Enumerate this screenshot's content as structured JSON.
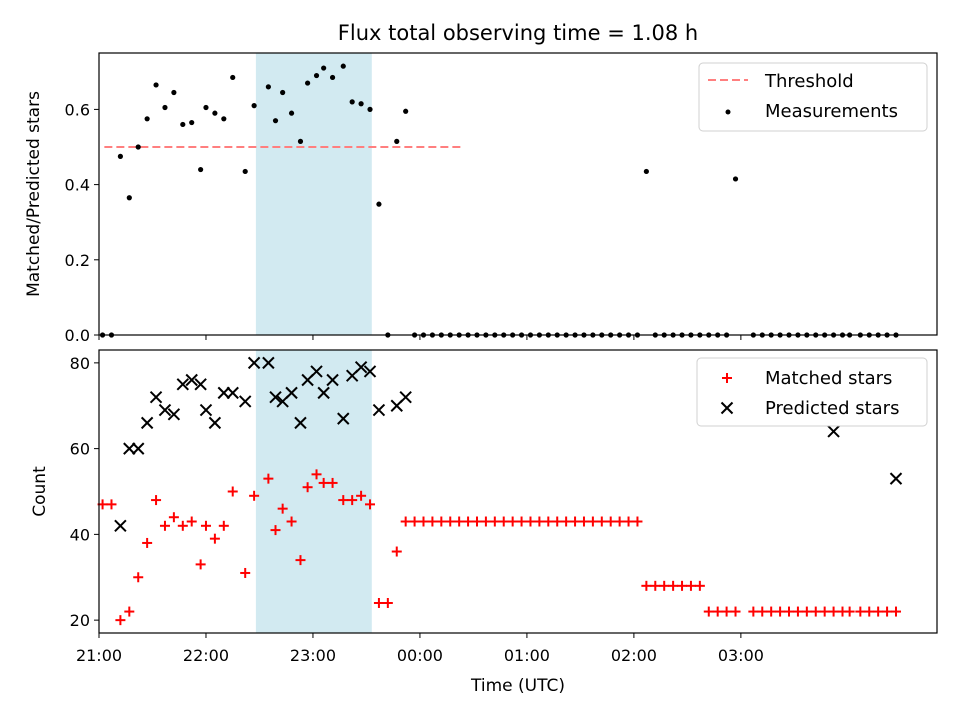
{
  "chart_data": [
    {
      "type": "scatter",
      "title": "Flux total observing time = 1.08 h",
      "xlabel": "",
      "ylabel": "Matched/Predicted stars",
      "ylim": [
        0,
        0.75
      ],
      "yticks": [
        "0.0",
        "0.2",
        "0.4",
        "0.6"
      ],
      "legend_position": "top-right",
      "shaded_interval": [
        "22:28",
        "23:33"
      ],
      "threshold": {
        "name": "Threshold",
        "value": 0.5,
        "x_range": [
          "21:03",
          "24:23"
        ],
        "color": "#ff7f7f",
        "style": "dashed"
      },
      "series": [
        {
          "name": "Measurements",
          "marker": "dot",
          "color": "#000000",
          "x": [
            "21:02",
            "21:07",
            "21:12",
            "21:17",
            "21:22",
            "21:27",
            "21:32",
            "21:37",
            "21:42",
            "21:47",
            "21:52",
            "21:57",
            "22:00",
            "22:05",
            "22:10",
            "22:15",
            "22:22",
            "22:27",
            "22:35",
            "22:39",
            "22:43",
            "22:48",
            "22:53",
            "22:57",
            "23:02",
            "23:06",
            "23:11",
            "23:17",
            "23:22",
            "23:27",
            "23:32",
            "23:37",
            "23:42",
            "23:47",
            "23:52",
            "23:57",
            "24:02",
            "24:07",
            "24:12",
            "24:17",
            "24:22",
            "24:27",
            "24:32",
            "24:37",
            "24:42",
            "24:47",
            "24:52",
            "24:57",
            "25:02",
            "25:07",
            "25:12",
            "25:17",
            "25:22",
            "25:27",
            "25:32",
            "25:37",
            "25:42",
            "25:47",
            "25:52",
            "25:57",
            "26:02",
            "26:07",
            "26:12",
            "26:17",
            "26:22",
            "26:27",
            "26:32",
            "26:37",
            "26:42",
            "26:47",
            "26:52",
            "26:57",
            "27:07",
            "27:12",
            "27:17",
            "27:22",
            "27:27",
            "27:32",
            "27:37",
            "27:42",
            "27:47",
            "27:52",
            "27:57",
            "28:01",
            "28:07",
            "28:12",
            "28:17",
            "28:22",
            "28:27"
          ],
          "y": [
            0,
            0,
            0.475,
            0.365,
            0.5,
            0.575,
            0.665,
            0.605,
            0.645,
            0.56,
            0.565,
            0.44,
            0.605,
            0.59,
            0.575,
            0.685,
            0.435,
            0.61,
            0.66,
            0.57,
            0.645,
            0.59,
            0.515,
            0.67,
            0.69,
            0.71,
            0.685,
            0.715,
            0.62,
            0.615,
            0.6,
            0.348,
            0,
            0.515,
            0.595,
            0,
            0,
            0,
            0,
            0,
            0,
            0,
            0,
            0,
            0,
            0,
            0,
            0,
            0,
            0,
            0,
            0,
            0,
            0,
            0,
            0,
            0,
            0,
            0,
            0,
            0,
            0.435,
            0,
            0,
            0,
            0,
            0,
            0,
            0,
            0,
            0,
            0.415,
            0,
            0,
            0,
            0,
            0,
            0,
            0,
            0,
            0,
            0,
            0,
            0,
            0,
            0,
            0,
            0,
            0
          ]
        }
      ]
    },
    {
      "type": "scatter",
      "title": "",
      "xlabel": "Time (UTC)",
      "ylabel": "Count",
      "ylim": [
        17,
        83
      ],
      "yticks": [
        "20",
        "40",
        "60",
        "80"
      ],
      "xticks": [
        "21:00",
        "22:00",
        "23:00",
        "00:00",
        "01:00",
        "02:00",
        "03:00"
      ],
      "legend_position": "top-right",
      "series": [
        {
          "name": "Matched stars",
          "marker": "plus",
          "color": "#ff0000",
          "x": [
            "21:02",
            "21:07",
            "21:12",
            "21:17",
            "21:22",
            "21:27",
            "21:32",
            "21:37",
            "21:42",
            "21:47",
            "21:52",
            "21:57",
            "22:00",
            "22:05",
            "22:10",
            "22:15",
            "22:22",
            "22:27",
            "22:35",
            "22:39",
            "22:43",
            "22:48",
            "22:53",
            "22:57",
            "23:02",
            "23:06",
            "23:11",
            "23:17",
            "23:22",
            "23:27",
            "23:32",
            "23:37",
            "23:42",
            "23:47",
            "23:52",
            "23:57",
            "24:02",
            "24:07",
            "24:12",
            "24:17",
            "24:22",
            "24:27",
            "24:32",
            "24:37",
            "24:42",
            "24:47",
            "24:52",
            "24:57",
            "25:02",
            "25:07",
            "25:12",
            "25:17",
            "25:22",
            "25:27",
            "25:32",
            "25:37",
            "25:42",
            "25:47",
            "25:52",
            "25:57",
            "26:02",
            "26:07",
            "26:12",
            "26:17",
            "26:22",
            "26:27",
            "26:32",
            "26:37",
            "26:42",
            "26:47",
            "26:52",
            "26:57",
            "27:07",
            "27:12",
            "27:17",
            "27:22",
            "27:27",
            "27:32",
            "27:37",
            "27:42",
            "27:47",
            "27:52",
            "27:57",
            "28:01",
            "28:07",
            "28:12",
            "28:17",
            "28:22",
            "28:27"
          ],
          "y": [
            47,
            47,
            20,
            22,
            30,
            38,
            48,
            42,
            44,
            42,
            43,
            33,
            42,
            39,
            42,
            50,
            31,
            49,
            53,
            41,
            46,
            43,
            34,
            51,
            54,
            52,
            52,
            48,
            48,
            49,
            47,
            24,
            24,
            36,
            43,
            43,
            43,
            43,
            43,
            43,
            43,
            43,
            43,
            43,
            43,
            43,
            43,
            43,
            43,
            43,
            43,
            43,
            43,
            43,
            43,
            43,
            43,
            43,
            43,
            43,
            43,
            28,
            28,
            28,
            28,
            28,
            28,
            28,
            22,
            22,
            22,
            22,
            22,
            22,
            22,
            22,
            22,
            22,
            22,
            22,
            22,
            22,
            22,
            22,
            22,
            22,
            22,
            22,
            22
          ]
        },
        {
          "name": "Predicted stars",
          "marker": "cross",
          "color": "#000000",
          "x": [
            "21:12",
            "21:17",
            "21:22",
            "21:27",
            "21:32",
            "21:37",
            "21:42",
            "21:47",
            "21:52",
            "21:57",
            "22:00",
            "22:05",
            "22:10",
            "22:15",
            "22:22",
            "22:27",
            "22:35",
            "22:39",
            "22:43",
            "22:48",
            "22:53",
            "22:57",
            "23:02",
            "23:06",
            "23:11",
            "23:17",
            "23:22",
            "23:27",
            "23:32",
            "23:37",
            "23:47",
            "23:52",
            "27:52",
            "28:27"
          ],
          "y": [
            42,
            60,
            60,
            66,
            72,
            69,
            68,
            75,
            76,
            75,
            69,
            66,
            73,
            73,
            71,
            80,
            80,
            72,
            71,
            73,
            66,
            76,
            78,
            73,
            76,
            67,
            77,
            79,
            78,
            69,
            70,
            72,
            64,
            53
          ]
        }
      ]
    }
  ]
}
